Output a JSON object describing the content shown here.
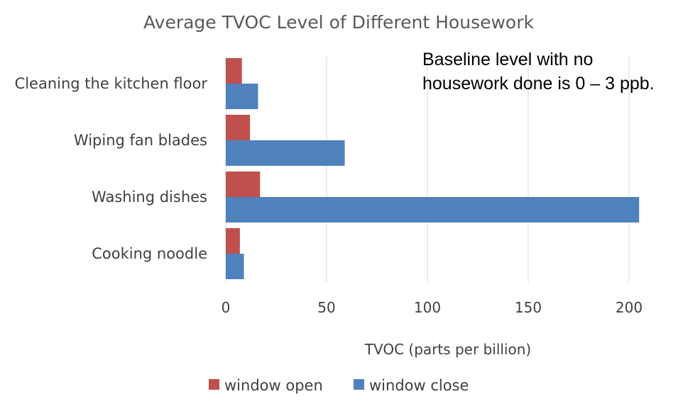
{
  "chart_data": {
    "type": "bar",
    "orientation": "horizontal",
    "title": "Average TVOC Level of Different Housework",
    "xlabel": "TVOC (parts per billion)",
    "ylabel": "",
    "xlim": [
      0,
      205
    ],
    "xticks": [
      0,
      50,
      100,
      150,
      200
    ],
    "grid": true,
    "legend_position": "bottom",
    "categories": [
      "Cleaning the kitchen floor",
      "Wiping fan blades",
      "Washing dishes",
      "Cooking noodle"
    ],
    "series": [
      {
        "name": "window open",
        "color": "#C0504D",
        "values": [
          8,
          12,
          17,
          7
        ]
      },
      {
        "name": "window close",
        "color": "#4F81BD",
        "values": [
          16,
          59,
          205,
          9
        ]
      }
    ],
    "annotation": {
      "lines": [
        "Baseline level with no",
        "housework done is 0 – 3 ppb."
      ]
    }
  }
}
